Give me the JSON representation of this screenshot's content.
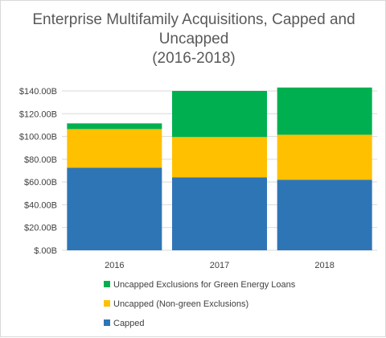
{
  "chart_data": {
    "type": "bar",
    "stacked": true,
    "title_lines": [
      "Enterprise Multifamily Acquisitions, Capped and",
      "Uncapped",
      "(2016-2018)"
    ],
    "categories": [
      "2016",
      "2017",
      "2018"
    ],
    "series": [
      {
        "name": "Capped",
        "color": "#2e75b6",
        "values": [
          72.5,
          64.0,
          62.0
        ]
      },
      {
        "name": "Uncapped (Non-green Exclusions)",
        "color": "#ffc000",
        "values": [
          34.0,
          35.5,
          39.5
        ]
      },
      {
        "name": "Uncapped Exclusions for Green Energy Loans",
        "color": "#00b050",
        "values": [
          5.0,
          40.5,
          41.5
        ]
      }
    ],
    "ylim": [
      0,
      140
    ],
    "yticks": [
      0,
      20,
      40,
      60,
      80,
      100,
      120,
      140
    ],
    "ytick_labels": [
      "$.00B",
      "$20.00B",
      "$40.00B",
      "$60.00B",
      "$80.00B",
      "$100.00B",
      "$120.00B",
      "$140.00B"
    ],
    "grid": true,
    "legend_position": "bottom",
    "legend_order": [
      2,
      1,
      0
    ],
    "gridline_color": "#d9d9d9"
  }
}
